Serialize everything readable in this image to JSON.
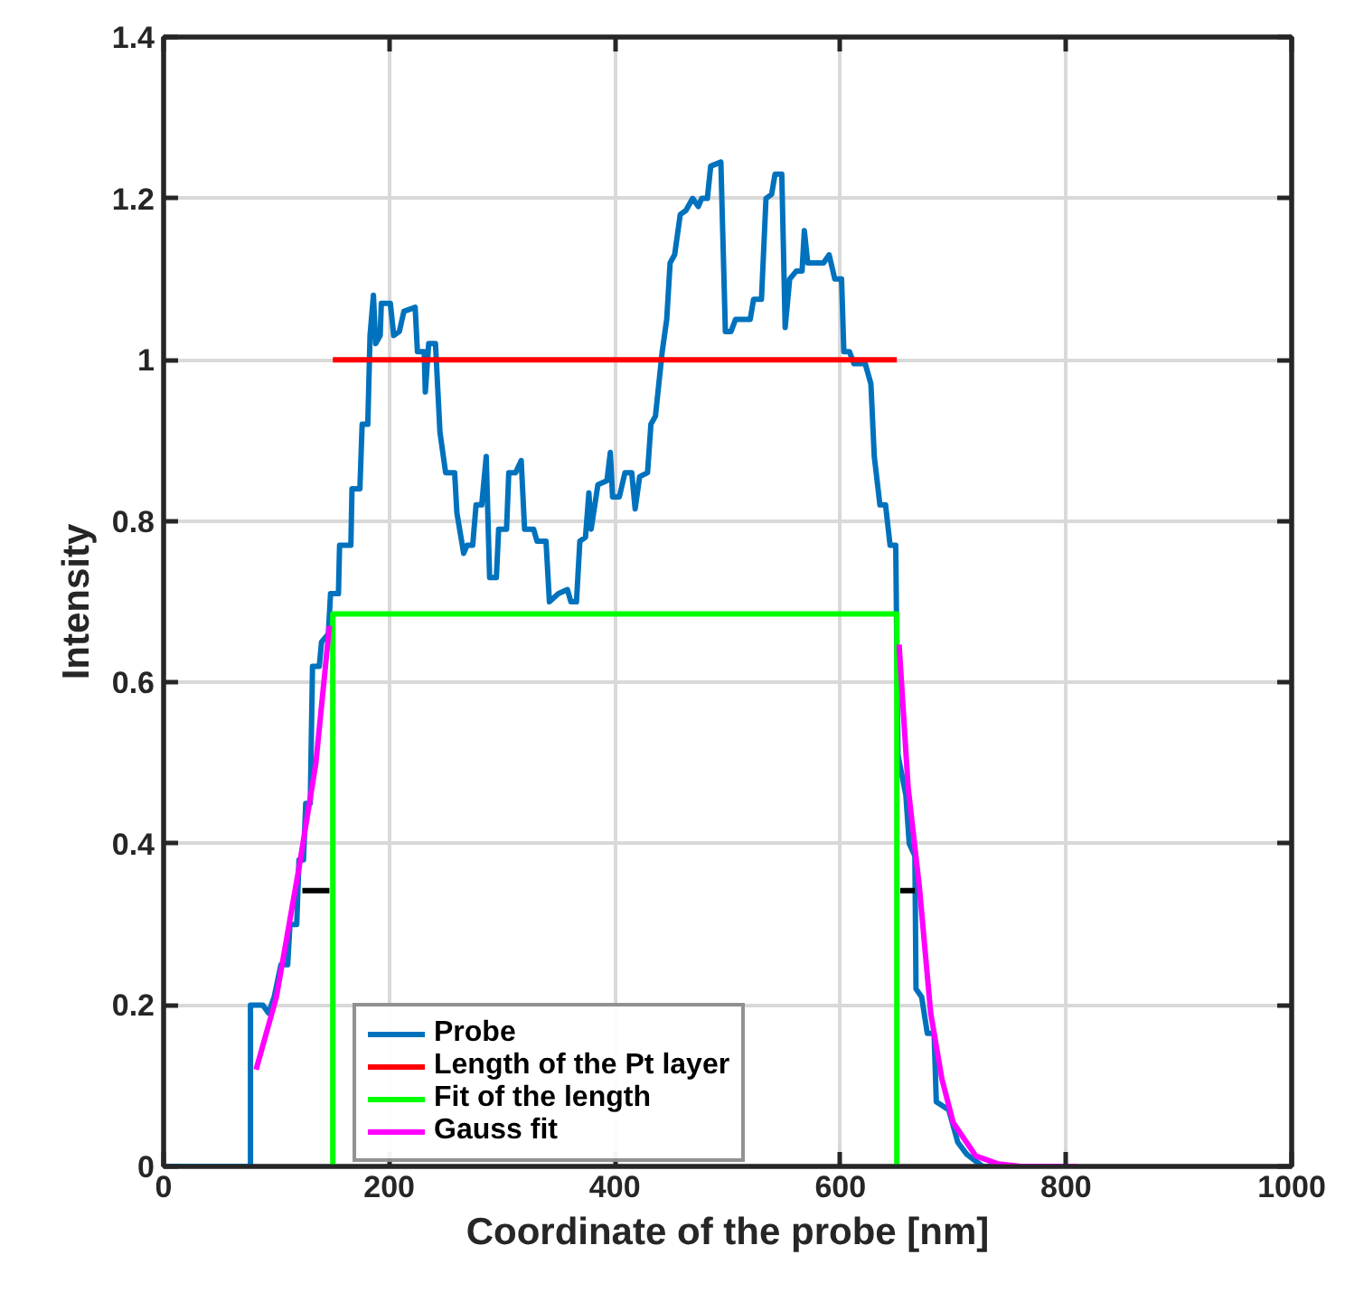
{
  "chart_data": {
    "type": "line",
    "xlabel": "Coordinate of the probe [nm]",
    "ylabel": "Intensity",
    "xlim": [
      0,
      1000
    ],
    "ylim": [
      0,
      1.4
    ],
    "xticks": [
      0,
      200,
      400,
      600,
      800,
      1000
    ],
    "yticks": [
      0,
      0.2,
      0.4,
      0.6,
      0.8,
      1,
      1.2,
      1.4
    ],
    "grid": true,
    "legend": "bottom",
    "line_style": "solid",
    "series": [
      {
        "name": "Probe",
        "color": "#0072bd",
        "x": [
          0,
          77,
          77,
          88,
          93,
          98,
          104,
          110,
          112,
          118,
          120,
          124,
          126,
          130,
          132,
          138,
          140,
          146,
          148,
          155,
          156,
          166,
          167,
          174,
          176,
          181,
          183,
          186,
          188,
          192,
          193,
          201,
          204,
          209,
          213,
          223,
          225,
          231,
          232,
          235,
          241,
          245,
          250,
          258,
          260,
          266,
          269,
          274,
          277,
          282,
          286,
          289,
          295,
          297,
          304,
          306,
          312,
          317,
          320,
          328,
          331,
          339,
          342,
          350,
          358,
          361,
          366,
          369,
          374,
          377,
          379,
          385,
          393,
          396,
          398,
          404,
          409,
          415,
          418,
          422,
          429,
          432,
          436,
          442,
          446,
          449,
          453,
          458,
          463,
          469,
          474,
          477,
          482,
          485,
          494,
          498,
          503,
          507,
          520,
          523,
          530,
          534,
          539,
          542,
          548,
          551,
          555,
          561,
          566,
          568,
          571,
          574,
          585,
          590,
          595,
          601,
          603,
          608,
          612,
          622,
          627,
          630,
          635,
          640,
          644,
          649,
          651,
          658,
          661,
          666,
          667,
          672,
          677,
          683,
          685,
          696,
          704,
          712,
          726,
          805
        ],
        "values": [
          0,
          0,
          0.2,
          0.2,
          0.19,
          0.21,
          0.25,
          0.25,
          0.3,
          0.3,
          0.38,
          0.38,
          0.45,
          0.45,
          0.62,
          0.62,
          0.65,
          0.66,
          0.71,
          0.71,
          0.77,
          0.77,
          0.84,
          0.84,
          0.92,
          0.92,
          1.03,
          1.08,
          1.02,
          1.03,
          1.07,
          1.07,
          1.03,
          1.035,
          1.06,
          1.065,
          1.01,
          1.01,
          0.96,
          1.02,
          1.02,
          0.91,
          0.86,
          0.86,
          0.81,
          0.76,
          0.77,
          0.77,
          0.82,
          0.82,
          0.88,
          0.73,
          0.73,
          0.79,
          0.79,
          0.86,
          0.86,
          0.875,
          0.79,
          0.79,
          0.775,
          0.775,
          0.7,
          0.71,
          0.715,
          0.7,
          0.7,
          0.775,
          0.78,
          0.835,
          0.79,
          0.845,
          0.85,
          0.885,
          0.83,
          0.83,
          0.86,
          0.86,
          0.815,
          0.855,
          0.86,
          0.92,
          0.93,
          1.01,
          1.05,
          1.12,
          1.13,
          1.18,
          1.185,
          1.2,
          1.19,
          1.2,
          1.2,
          1.24,
          1.245,
          1.035,
          1.035,
          1.05,
          1.05,
          1.075,
          1.075,
          1.2,
          1.205,
          1.23,
          1.23,
          1.04,
          1.1,
          1.11,
          1.11,
          1.16,
          1.12,
          1.12,
          1.12,
          1.13,
          1.1,
          1.1,
          1.01,
          1.01,
          0.995,
          0.995,
          0.97,
          0.88,
          0.82,
          0.82,
          0.77,
          0.77,
          0.51,
          0.46,
          0.4,
          0.385,
          0.22,
          0.21,
          0.165,
          0.165,
          0.08,
          0.07,
          0.03,
          0.015,
          0,
          0
        ]
      },
      {
        "name": "Length of the Pt layer",
        "color": "#ff0000",
        "x": [
          150,
          650
        ],
        "values": [
          1,
          1
        ]
      },
      {
        "name": "Fit of the length",
        "color": "#00ff00",
        "x": [
          150,
          150,
          650,
          650
        ],
        "values": [
          0,
          0.685,
          0.685,
          0
        ]
      },
      {
        "name": "Gauss fit",
        "color": "#ff00ff",
        "x": [
          82,
          100,
          120,
          135,
          147,
          null,
          652,
          660,
          670,
          680,
          690,
          700,
          720,
          740,
          760,
          810
        ],
        "values": [
          0.12,
          0.21,
          0.37,
          0.5,
          0.67,
          null,
          0.647,
          0.47,
          0.346,
          0.19,
          0.108,
          0.054,
          0.013,
          0.003,
          0,
          0
        ]
      },
      {
        "color": "#000000",
        "x": [
          123,
          147,
          null,
          653,
          666
        ],
        "values": [
          0.342,
          0.342,
          null,
          0.342,
          0.342
        ]
      }
    ]
  }
}
